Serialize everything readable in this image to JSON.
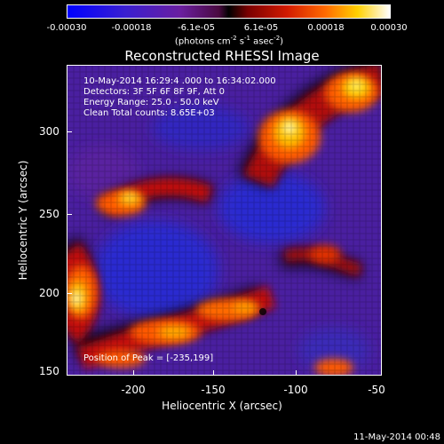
{
  "colorbar": {
    "ticks": [
      "-0.00030",
      "-0.00018",
      "-6.1e-05",
      "6.1e-05",
      "0.00018",
      "0.00030"
    ],
    "units_main": "(photons cm",
    "units_sup1": "-2",
    "units_mid": " s",
    "units_sup2": "-1",
    "units_end": " asec",
    "units_sup3": "-2",
    "units_close": ")"
  },
  "image": {
    "title": "Reconstructed RHESSI Image",
    "time_range": "10-May-2014 16:29:4  .000 to 16:34:02.000",
    "detectors": "Detectors: 3F 5F 6F    8F 9F, Att 0",
    "energy_range": "Energy Range: 25.0 - 50.0 keV",
    "clean": "Clean     Total counts: 8.65E+03",
    "peak": "Position of Peak = [-235,199]"
  },
  "axes": {
    "xlabel": "Heliocentric X (arcsec)",
    "ylabel": "Heliocentric Y (arcsec)",
    "xticks": [
      "-200",
      "-150",
      "-100",
      "-50"
    ],
    "yticks": [
      "300",
      "250",
      "200",
      "150"
    ]
  },
  "datestamp": "11-May-2014 00:48",
  "colors": {
    "negative": "#0000ff",
    "zero": "#000000",
    "positive": "#ff3000",
    "max": "#ffffff"
  }
}
